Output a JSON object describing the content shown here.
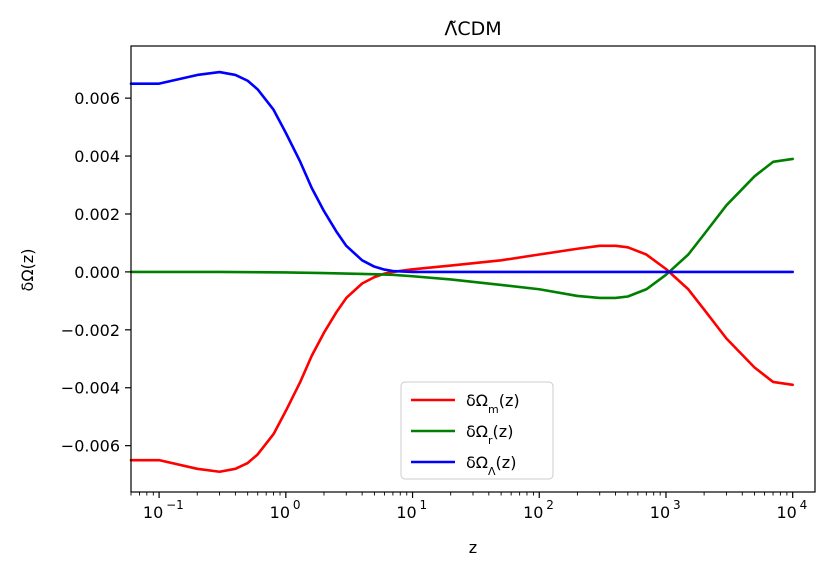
{
  "chart_data": {
    "type": "line",
    "title": "Λ̃CDM",
    "xlabel": "z",
    "ylabel": "δΩ(z)",
    "xscale": "log",
    "xlim": [
      0.06,
      15000
    ],
    "ylim": [
      -0.0076,
      0.0078
    ],
    "grid": false,
    "legend_position": "lower-center",
    "x_ticks": [
      {
        "value": 0.1,
        "label": "10",
        "exp": "−1"
      },
      {
        "value": 1,
        "label": "10",
        "exp": "0"
      },
      {
        "value": 10,
        "label": "10",
        "exp": "1"
      },
      {
        "value": 100,
        "label": "10",
        "exp": "2"
      },
      {
        "value": 1000,
        "label": "10",
        "exp": "3"
      },
      {
        "value": 10000,
        "label": "10",
        "exp": "4"
      }
    ],
    "y_ticks": [
      {
        "value": 0.006,
        "label": "0.006"
      },
      {
        "value": 0.004,
        "label": "0.004"
      },
      {
        "value": 0.002,
        "label": "0.002"
      },
      {
        "value": 0.0,
        "label": "0.000"
      },
      {
        "value": -0.002,
        "label": "−0.002"
      },
      {
        "value": -0.004,
        "label": "−0.004"
      },
      {
        "value": -0.006,
        "label": "−0.006"
      }
    ],
    "series": [
      {
        "name": "δΩm(z)",
        "color": "#ff0000",
        "points": [
          [
            0.06,
            -0.0065
          ],
          [
            0.1,
            -0.0065
          ],
          [
            0.2,
            -0.0068
          ],
          [
            0.3,
            -0.0069
          ],
          [
            0.4,
            -0.0068
          ],
          [
            0.5,
            -0.0066
          ],
          [
            0.6,
            -0.0063
          ],
          [
            0.8,
            -0.0056
          ],
          [
            1.0,
            -0.0048
          ],
          [
            1.3,
            -0.0038
          ],
          [
            1.6,
            -0.0029
          ],
          [
            2.0,
            -0.0021
          ],
          [
            2.5,
            -0.0014
          ],
          [
            3.0,
            -0.0009
          ],
          [
            4.0,
            -0.0004
          ],
          [
            5.0,
            -0.00018
          ],
          [
            6.0,
            -6e-05
          ],
          [
            7.0,
            0.0
          ],
          [
            10.0,
            9e-05
          ],
          [
            20.0,
            0.00022
          ],
          [
            50.0,
            0.0004
          ],
          [
            100.0,
            0.0006
          ],
          [
            200.0,
            0.0008
          ],
          [
            300.0,
            0.0009
          ],
          [
            400.0,
            0.0009
          ],
          [
            500.0,
            0.00085
          ],
          [
            700.0,
            0.0006
          ],
          [
            1000.0,
            0.0001
          ],
          [
            1500.0,
            -0.0006
          ],
          [
            2000.0,
            -0.0013
          ],
          [
            3000.0,
            -0.0023
          ],
          [
            5000.0,
            -0.0033
          ],
          [
            7000.0,
            -0.0038
          ],
          [
            10000.0,
            -0.0039
          ]
        ]
      },
      {
        "name": "δΩr(z)",
        "color": "#008000",
        "points": [
          [
            0.06,
            0.0
          ],
          [
            0.3,
            0.0
          ],
          [
            1.0,
            -2e-05
          ],
          [
            2.0,
            -4e-05
          ],
          [
            4.0,
            -7e-05
          ],
          [
            7.0,
            -0.0001
          ],
          [
            10.0,
            -0.00015
          ],
          [
            20.0,
            -0.00026
          ],
          [
            50.0,
            -0.00045
          ],
          [
            100.0,
            -0.0006
          ],
          [
            200.0,
            -0.00083
          ],
          [
            300.0,
            -0.0009
          ],
          [
            400.0,
            -0.0009
          ],
          [
            500.0,
            -0.00085
          ],
          [
            700.0,
            -0.0006
          ],
          [
            1000.0,
            -0.0001
          ],
          [
            1500.0,
            0.0006
          ],
          [
            2000.0,
            0.0013
          ],
          [
            3000.0,
            0.0023
          ],
          [
            5000.0,
            0.0033
          ],
          [
            7000.0,
            0.0038
          ],
          [
            10000.0,
            0.0039
          ]
        ]
      },
      {
        "name": "δΩΛ(z)",
        "color": "#0000ff",
        "points": [
          [
            0.06,
            0.0065
          ],
          [
            0.1,
            0.0065
          ],
          [
            0.2,
            0.0068
          ],
          [
            0.3,
            0.0069
          ],
          [
            0.4,
            0.0068
          ],
          [
            0.5,
            0.0066
          ],
          [
            0.6,
            0.0063
          ],
          [
            0.8,
            0.0056
          ],
          [
            1.0,
            0.0048
          ],
          [
            1.3,
            0.0038
          ],
          [
            1.6,
            0.0029
          ],
          [
            2.0,
            0.0021
          ],
          [
            2.5,
            0.0014
          ],
          [
            3.0,
            0.0009
          ],
          [
            4.0,
            0.0004
          ],
          [
            5.0,
            0.00018
          ],
          [
            6.0,
            8e-05
          ],
          [
            7.0,
            3e-05
          ],
          [
            10.0,
            0.0
          ],
          [
            100.0,
            0.0
          ],
          [
            1000.0,
            0.0
          ],
          [
            10000.0,
            0.0
          ]
        ]
      }
    ]
  }
}
